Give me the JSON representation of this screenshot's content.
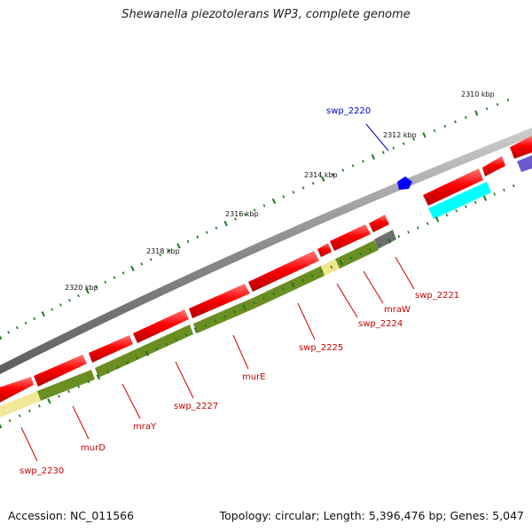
{
  "title": "Shewanella piezotolerans WP3, complete genome",
  "footer": {
    "accession": "Accession: NC_011566",
    "stats": "Topology: circular; Length: 5,396,476 bp; Genes: 5,047"
  },
  "scale_labels": [
    "2310 kbp",
    "2312 kbp",
    "2314 kbp",
    "2316 kbp",
    "2318 kbp",
    "2320 kbp"
  ],
  "gene_labels": [
    "swp_2220",
    "swp_2221",
    "mraW",
    "swp_2224",
    "swp_2225",
    "murE",
    "swp_2227",
    "mraY",
    "murD",
    "swp_2230"
  ],
  "colors": {
    "backbone": "#8a8a8a",
    "gene": "#ff0000",
    "cds_olive": "#6b8e23",
    "cds_pale": "#f0e68c",
    "cds_cyan": "#00ffff",
    "cds_gray": "#6e6e6e",
    "cds_slate": "#6a5acd",
    "highlight": "#0000ff",
    "tick": "#1a7a1a",
    "label_red": "#cc0000",
    "label_blue": "#0000cc"
  }
}
